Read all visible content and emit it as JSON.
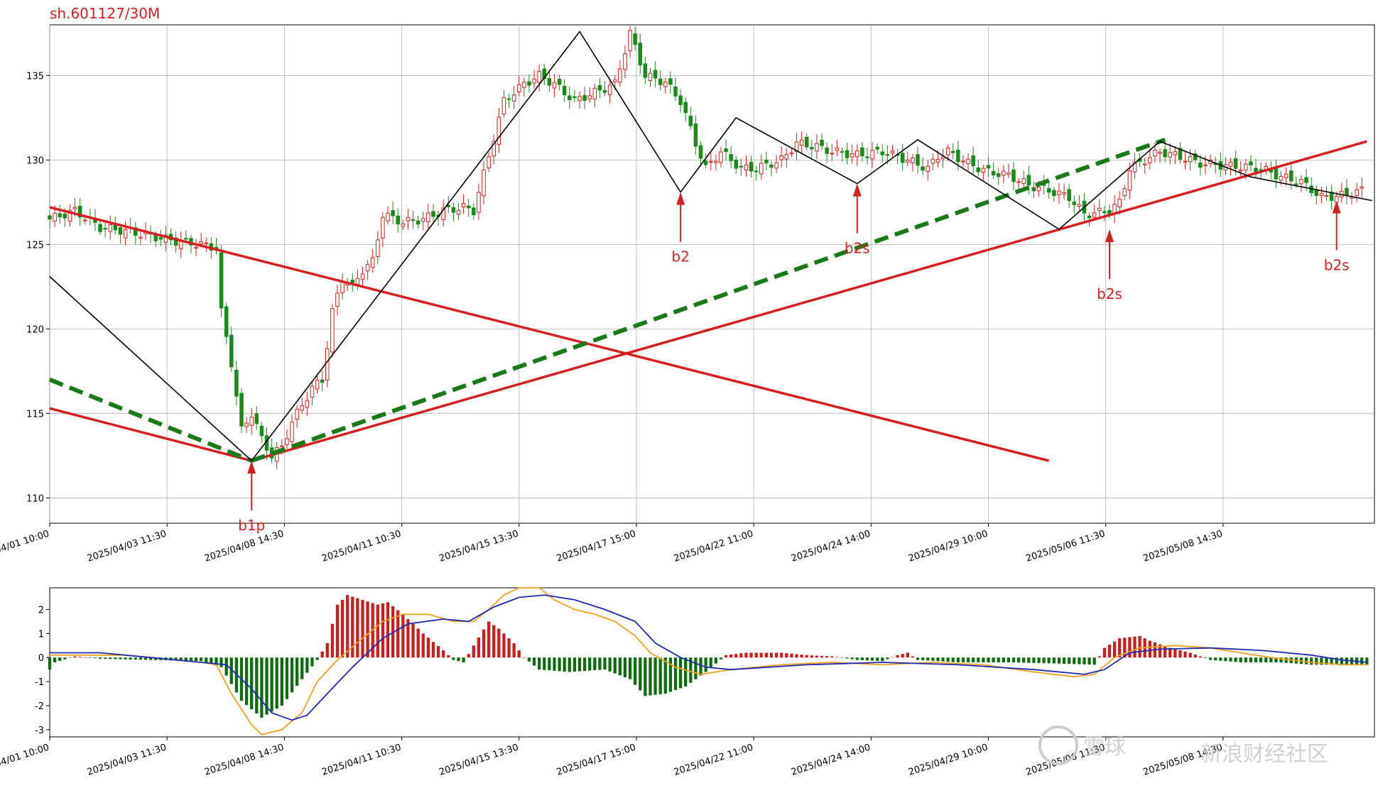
{
  "chart_data": [
    {
      "type": "candlestick",
      "title": "sh.601127/30M",
      "ylim": [
        108.5,
        138
      ],
      "yticks": [
        110,
        115,
        120,
        125,
        130,
        135
      ],
      "grid": true,
      "x_tick_labels": [
        "2025/04/01 10:00",
        "2025/04/03 11:30",
        "2025/04/08 14:30",
        "2025/04/11 10:30",
        "2025/04/15 13:30",
        "2025/04/17 15:00",
        "2025/04/22 11:00",
        "2025/04/24 14:00",
        "2025/04/29 10:00",
        "2025/05/06 11:30",
        "2025/05/08 14:30"
      ],
      "x_index_range": [
        0,
        210
      ],
      "price_path": [
        [
          0,
          126.5
        ],
        [
          5,
          127
        ],
        [
          10,
          126
        ],
        [
          15,
          125.8
        ],
        [
          20,
          125.5
        ],
        [
          25,
          125.2
        ],
        [
          30,
          125
        ],
        [
          33,
          124.8
        ],
        [
          34,
          121
        ],
        [
          36,
          118
        ],
        [
          38,
          114
        ],
        [
          40,
          115
        ],
        [
          42,
          113.5
        ],
        [
          44,
          112.5
        ],
        [
          46,
          113
        ],
        [
          48,
          114.5
        ],
        [
          50,
          115.5
        ],
        [
          52,
          116.5
        ],
        [
          54,
          117
        ],
        [
          56,
          121
        ],
        [
          58,
          123
        ],
        [
          60,
          122.5
        ],
        [
          62,
          123.5
        ],
        [
          64,
          124
        ],
        [
          66,
          126.8
        ],
        [
          70,
          126.3
        ],
        [
          74,
          126.5
        ],
        [
          78,
          127
        ],
        [
          82,
          127.2
        ],
        [
          84,
          127
        ],
        [
          90,
          133.5
        ],
        [
          94,
          134.5
        ],
        [
          97,
          135
        ],
        [
          100,
          134.5
        ],
        [
          104,
          133.5
        ],
        [
          108,
          134
        ],
        [
          112,
          134.5
        ],
        [
          115,
          137.5
        ],
        [
          118,
          135
        ],
        [
          122,
          134.6
        ],
        [
          125,
          133.5
        ],
        [
          128,
          131
        ],
        [
          130,
          129.5
        ],
        [
          133,
          130.5
        ],
        [
          137,
          129.5
        ],
        [
          140,
          129.5
        ],
        [
          145,
          130
        ],
        [
          148,
          131
        ],
        [
          152,
          130.8
        ],
        [
          155,
          130.5
        ],
        [
          160,
          130.3
        ],
        [
          165,
          130.5
        ],
        [
          170,
          130
        ],
        [
          174,
          129.5
        ],
        [
          176,
          130.2
        ],
        [
          178,
          130.5
        ],
        [
          182,
          129.8
        ],
        [
          186,
          129.3
        ],
        [
          190,
          129.1
        ],
        [
          194,
          128.5
        ],
        [
          198,
          128.2
        ],
        [
          202,
          127.8
        ],
        [
          205,
          126.8
        ],
        [
          208,
          126.9
        ],
        [
          210,
          127
        ],
        [
          212,
          127.5
        ],
        [
          214,
          129.5
        ],
        [
          217,
          130
        ],
        [
          220,
          130.5
        ],
        [
          224,
          130.2
        ],
        [
          228,
          129.8
        ],
        [
          232,
          129.7
        ],
        [
          236,
          129.6
        ],
        [
          240,
          129.5
        ],
        [
          244,
          129
        ],
        [
          248,
          128.7
        ],
        [
          252,
          127.8
        ],
        [
          256,
          127.9
        ],
        [
          260,
          128.2
        ]
      ],
      "lines": [
        {
          "name": "downtrend",
          "color": "#d42020",
          "style": "solid",
          "points": [
            [
              0,
              127.2
            ],
            [
              198,
              112.2
            ]
          ]
        },
        {
          "name": "lower_left",
          "color": "#d42020",
          "style": "solid",
          "points": [
            [
              0,
              115.3
            ],
            [
              40,
              112.2
            ]
          ]
        },
        {
          "name": "uptrend",
          "color": "#d42020",
          "style": "solid",
          "points": [
            [
              40,
              112.2
            ],
            [
              261,
              131.1
            ]
          ]
        },
        {
          "name": "green_left",
          "color": "#1a7a1a",
          "style": "dashed",
          "points": [
            [
              0,
              117
            ],
            [
              40,
              112.2
            ]
          ]
        },
        {
          "name": "green_up",
          "color": "#1a7a1a",
          "style": "dashed",
          "points": [
            [
              40,
              112.2
            ],
            [
              221,
              131.2
            ]
          ]
        },
        {
          "name": "zigzag",
          "color": "#000000",
          "style": "solid",
          "points": [
            [
              0,
              123.1
            ],
            [
              40,
              112.2
            ],
            [
              105,
              137.6
            ],
            [
              125,
              128.1
            ],
            [
              136,
              132.5
            ],
            [
              160,
              128.6
            ],
            [
              172,
              131.2
            ],
            [
              200,
              125.9
            ],
            [
              220,
              131.1
            ],
            [
              238,
              129
            ],
            [
              262,
              127.6
            ]
          ]
        }
      ],
      "signals": [
        {
          "label": "b1p",
          "x": 40,
          "price": 112.2,
          "label_position": "below"
        },
        {
          "label": "b2",
          "x": 125,
          "price": 128.1,
          "label_position": "below"
        },
        {
          "label": "b2s",
          "x": 160,
          "price": 128.6,
          "label_position": "below"
        },
        {
          "label": "b2s",
          "x": 210,
          "price": 125.9,
          "label_position": "below"
        },
        {
          "label": "b2s",
          "x": 255,
          "price": 127.6,
          "label_position": "below"
        }
      ]
    },
    {
      "type": "macd",
      "ylim": [
        -3.3,
        2.9
      ],
      "yticks": [
        -3,
        -2,
        -1,
        0,
        1,
        2
      ],
      "grid": false,
      "x_tick_labels": [
        "2025/04/01 10:00",
        "2025/04/03 11:30",
        "2025/04/08 14:30",
        "2025/04/11 10:30",
        "2025/04/15 13:30",
        "2025/04/17 15:00",
        "2025/04/22 11:00",
        "2025/04/24 14:00",
        "2025/04/29 10:00",
        "2025/05/06 11:30",
        "2025/05/08 14:30"
      ],
      "series": [
        {
          "name": "dif",
          "color": "#f0a020",
          "points": [
            [
              0,
              0.1
            ],
            [
              15,
              0.1
            ],
            [
              25,
              -0.1
            ],
            [
              30,
              -0.2
            ],
            [
              33,
              -0.3
            ],
            [
              36,
              -1.5
            ],
            [
              40,
              -2.8
            ],
            [
              42,
              -3.2
            ],
            [
              46,
              -3.0
            ],
            [
              50,
              -2.3
            ],
            [
              53,
              -1.0
            ],
            [
              57,
              -0.1
            ],
            [
              62,
              0.8
            ],
            [
              66,
              1.5
            ],
            [
              70,
              1.8
            ],
            [
              75,
              1.8
            ],
            [
              80,
              1.5
            ],
            [
              84,
              1.5
            ],
            [
              87,
              2.0
            ],
            [
              90,
              2.6
            ],
            [
              93,
              3.0
            ],
            [
              97,
              3.0
            ],
            [
              100,
              2.4
            ],
            [
              104,
              2.0
            ],
            [
              108,
              1.8
            ],
            [
              112,
              1.5
            ],
            [
              116,
              0.9
            ],
            [
              119,
              0.2
            ],
            [
              124,
              -0.4
            ],
            [
              129,
              -0.7
            ],
            [
              135,
              -0.5
            ],
            [
              145,
              -0.3
            ],
            [
              155,
              -0.2
            ],
            [
              165,
              -0.3
            ],
            [
              175,
              -0.2
            ],
            [
              185,
              -0.3
            ],
            [
              195,
              -0.6
            ],
            [
              203,
              -0.8
            ],
            [
              207,
              -0.7
            ],
            [
              211,
              0.0
            ],
            [
              216,
              0.4
            ],
            [
              223,
              0.5
            ],
            [
              230,
              0.4
            ],
            [
              236,
              0.2
            ],
            [
              242,
              0.0
            ],
            [
              250,
              -0.2
            ],
            [
              256,
              -0.3
            ],
            [
              261,
              -0.3
            ]
          ]
        },
        {
          "name": "dea",
          "color": "#1e2ab0",
          "points": [
            [
              0,
              0.2
            ],
            [
              10,
              0.2
            ],
            [
              20,
              0.0
            ],
            [
              30,
              -0.2
            ],
            [
              35,
              -0.3
            ],
            [
              40,
              -1.3
            ],
            [
              44,
              -2.3
            ],
            [
              48,
              -2.6
            ],
            [
              51,
              -2.4
            ],
            [
              55,
              -1.5
            ],
            [
              60,
              -0.4
            ],
            [
              66,
              0.8
            ],
            [
              71,
              1.4
            ],
            [
              78,
              1.6
            ],
            [
              83,
              1.5
            ],
            [
              88,
              2.1
            ],
            [
              93,
              2.5
            ],
            [
              98,
              2.6
            ],
            [
              104,
              2.4
            ],
            [
              110,
              2.0
            ],
            [
              116,
              1.5
            ],
            [
              120,
              0.6
            ],
            [
              125,
              0.0
            ],
            [
              130,
              -0.4
            ],
            [
              135,
              -0.5
            ],
            [
              150,
              -0.3
            ],
            [
              165,
              -0.2
            ],
            [
              180,
              -0.3
            ],
            [
              195,
              -0.5
            ],
            [
              205,
              -0.7
            ],
            [
              209,
              -0.5
            ],
            [
              214,
              0.2
            ],
            [
              220,
              0.35
            ],
            [
              230,
              0.4
            ],
            [
              240,
              0.3
            ],
            [
              250,
              0.1
            ],
            [
              256,
              -0.1
            ],
            [
              261,
              -0.2
            ]
          ]
        }
      ],
      "histogram_profile": [
        [
          0,
          -0.5
        ],
        [
          1,
          -0.2
        ],
        [
          5,
          0.05
        ],
        [
          10,
          -0.05
        ],
        [
          20,
          -0.1
        ],
        [
          30,
          -0.15
        ],
        [
          34,
          -0.4
        ],
        [
          38,
          -1.8
        ],
        [
          42,
          -2.5
        ],
        [
          46,
          -2.0
        ],
        [
          50,
          -0.9
        ],
        [
          53,
          -0.1
        ],
        [
          55,
          0.6
        ],
        [
          57,
          2.2
        ],
        [
          59,
          2.6
        ],
        [
          62,
          2.4
        ],
        [
          65,
          2.2
        ],
        [
          67,
          2.3
        ],
        [
          70,
          1.8
        ],
        [
          74,
          1.0
        ],
        [
          78,
          0.3
        ],
        [
          80,
          -0.1
        ],
        [
          82,
          -0.2
        ],
        [
          84,
          0.5
        ],
        [
          87,
          1.5
        ],
        [
          89,
          1.2
        ],
        [
          92,
          0.6
        ],
        [
          94,
          0.0
        ],
        [
          97,
          -0.5
        ],
        [
          103,
          -0.6
        ],
        [
          110,
          -0.5
        ],
        [
          115,
          -0.9
        ],
        [
          118,
          -1.6
        ],
        [
          122,
          -1.5
        ],
        [
          126,
          -1.2
        ],
        [
          130,
          -0.6
        ],
        [
          134,
          0.1
        ],
        [
          138,
          0.2
        ],
        [
          145,
          0.2
        ],
        [
          150,
          0.1
        ],
        [
          155,
          0.05
        ],
        [
          160,
          -0.1
        ],
        [
          165,
          -0.15
        ],
        [
          168,
          0.1
        ],
        [
          170,
          0.2
        ],
        [
          172,
          -0.1
        ],
        [
          180,
          -0.2
        ],
        [
          190,
          -0.2
        ],
        [
          200,
          -0.25
        ],
        [
          207,
          -0.3
        ],
        [
          209,
          0.4
        ],
        [
          212,
          0.8
        ],
        [
          216,
          0.9
        ],
        [
          218,
          0.7
        ],
        [
          222,
          0.4
        ],
        [
          226,
          0.2
        ],
        [
          230,
          -0.1
        ],
        [
          236,
          -0.2
        ],
        [
          244,
          -0.2
        ],
        [
          250,
          -0.3
        ],
        [
          256,
          -0.3
        ],
        [
          262,
          -0.3
        ]
      ]
    }
  ],
  "watermarks": [
    {
      "text": "雪球"
    },
    {
      "text": "新浪财经社区"
    }
  ]
}
